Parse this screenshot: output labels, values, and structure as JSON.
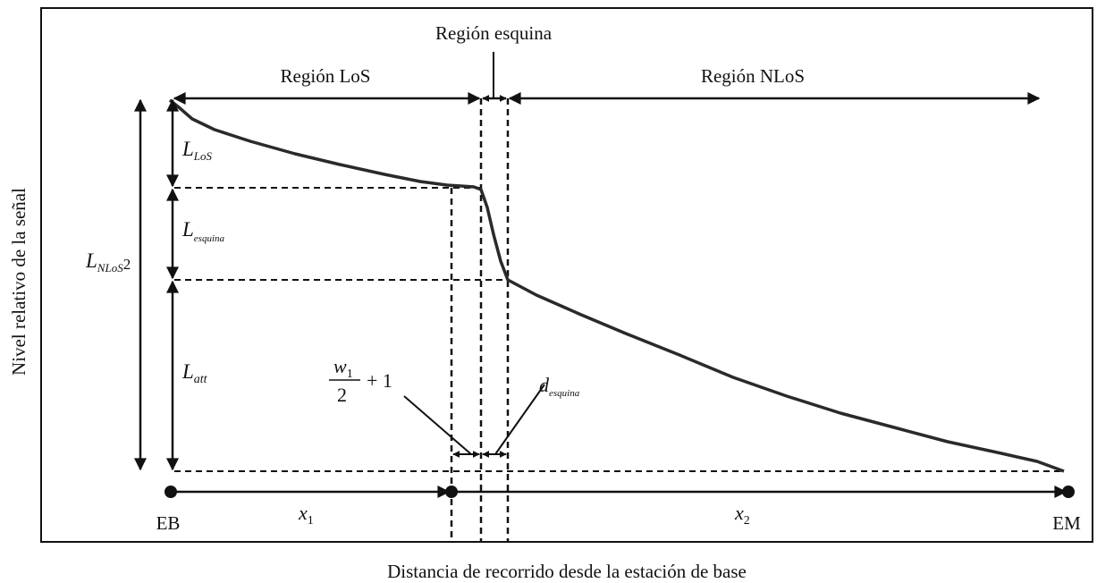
{
  "region_labels": {
    "los": "Región LoS",
    "corner": "Región esquina",
    "nlos": "Región NLoS"
  },
  "levels": {
    "l_los": {
      "main": "L",
      "sub": "LoS"
    },
    "l_corner": {
      "main": "L",
      "sub": "esquina"
    },
    "l_att": {
      "main": "L",
      "sub": "att"
    },
    "l_nlos2": {
      "main": "L",
      "sub": "NLoS",
      "suffix": "2"
    }
  },
  "fraction": {
    "numerator": "w",
    "numerator_sub": "1",
    "denominator": "2",
    "tail": "+ 1"
  },
  "d_corner": {
    "main": "d",
    "sub": "esquina"
  },
  "points": {
    "bs": "EB",
    "ms": "EM"
  },
  "distances": {
    "x1": {
      "main": "x",
      "sub": "1"
    },
    "x2": {
      "main": "x",
      "sub": "2"
    }
  },
  "axes": {
    "y_label": "Nivel relativo de la señal",
    "x_label": "Distancia de recorrido desde la estación de base"
  },
  "colors": {
    "line": "#111111",
    "curve": "#2a2a2a",
    "background": "#ffffff"
  }
}
